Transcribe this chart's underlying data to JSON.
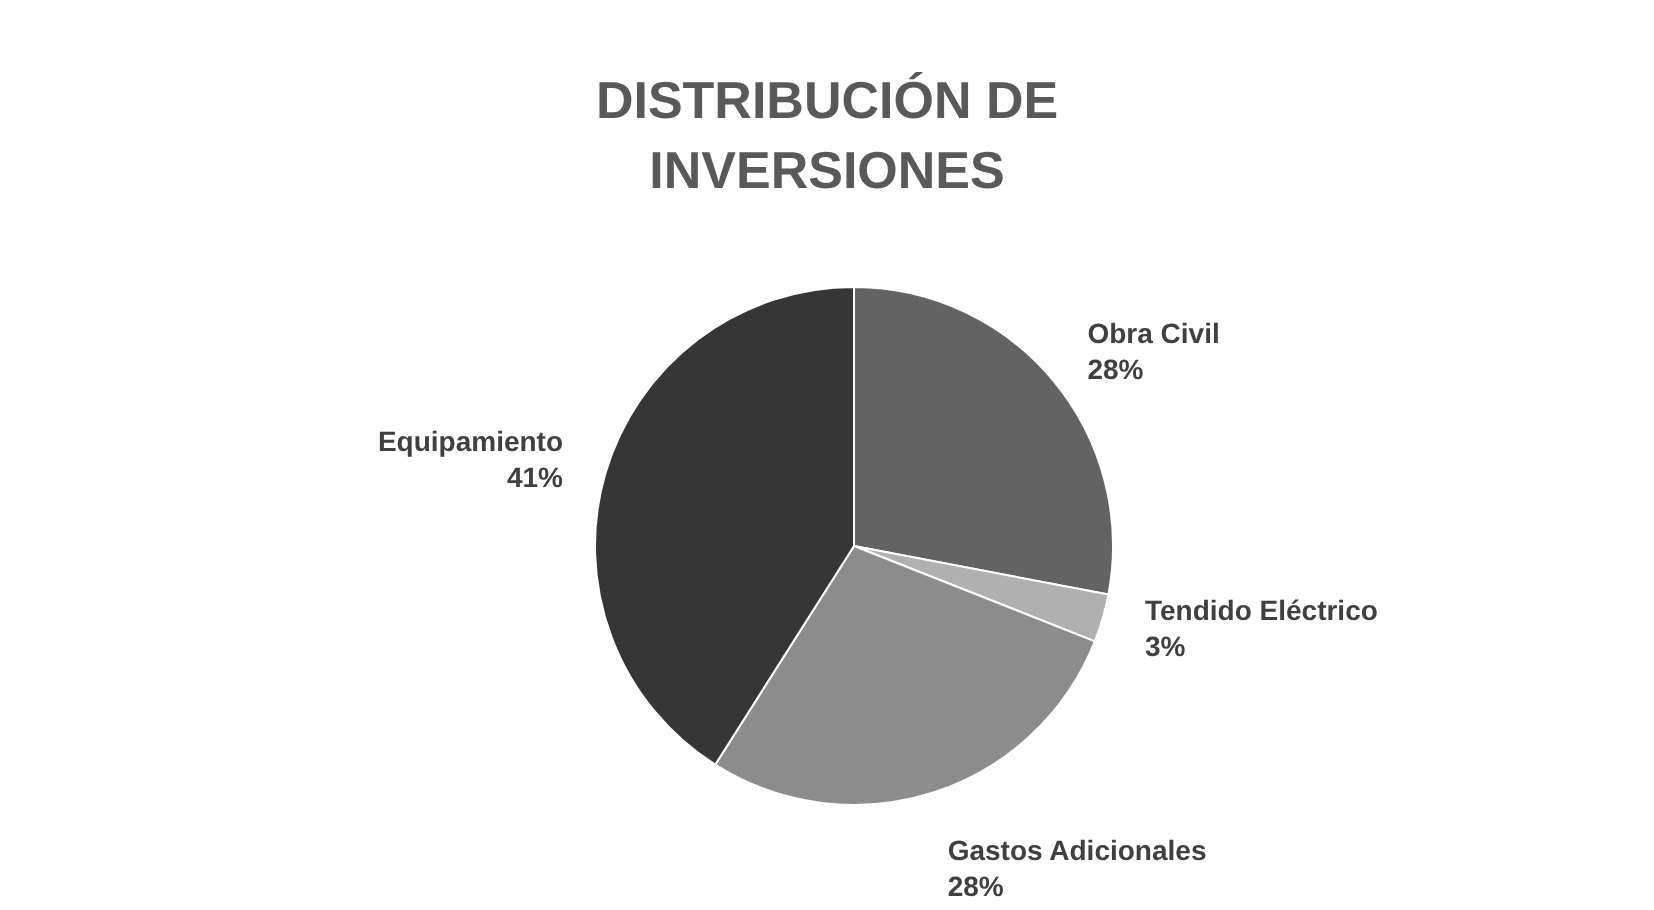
{
  "chart_data": {
    "type": "pie",
    "title": "DISTRIBUCIÓN DE INVERSIONES",
    "categories": [
      "Obra Civil",
      "Tendido Eléctrico",
      "Gastos Adicionales",
      "Equipamiento"
    ],
    "values": [
      28,
      3,
      28,
      41
    ],
    "colors": [
      "#636363",
      "#b0b0b0",
      "#8c8c8c",
      "#363636"
    ],
    "value_labels": [
      "28%",
      "3%",
      "28%",
      "41%"
    ],
    "legend": false
  }
}
